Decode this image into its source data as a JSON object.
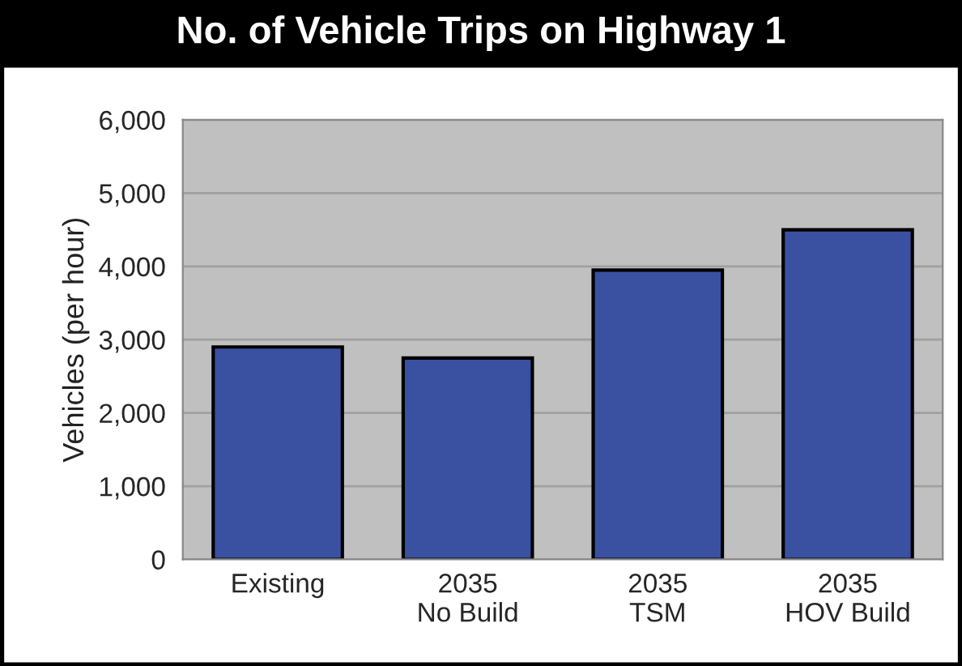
{
  "chart_data": {
    "type": "bar",
    "title": "No. of Vehicle Trips on Highway 1",
    "ylabel": "Vehicles (per hour)",
    "categories": [
      "Existing",
      "2035\nNo Build",
      "2035\nTSM",
      "2035\nHOV Build"
    ],
    "values": [
      2900,
      2750,
      3950,
      4500
    ],
    "color": "#3a50a0",
    "ylim": [
      0,
      6000
    ],
    "yticks": [
      {
        "value": 0,
        "label": "0"
      },
      {
        "value": 1000,
        "label": "1,000"
      },
      {
        "value": 2000,
        "label": "2,000"
      },
      {
        "value": 3000,
        "label": "3,000"
      },
      {
        "value": 4000,
        "label": "4,000"
      },
      {
        "value": 5000,
        "label": "5,000"
      },
      {
        "value": 6000,
        "label": "6,000"
      }
    ],
    "grid": "y",
    "legend": false
  }
}
